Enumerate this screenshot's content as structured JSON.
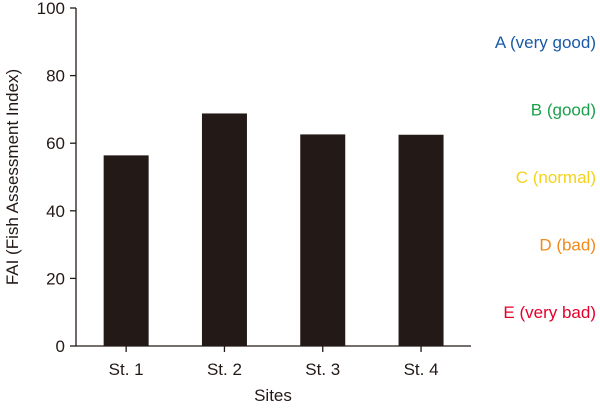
{
  "chart_data": {
    "type": "bar",
    "title": "",
    "xlabel": "Sites",
    "ylabel": "FAI (Fish Assessment Index)",
    "categories": [
      "St. 1",
      "St. 2",
      "St. 3",
      "St. 4"
    ],
    "values": [
      56.4,
      68.8,
      62.6,
      62.5
    ],
    "ylim": [
      0,
      100
    ],
    "yticks": [
      0,
      20,
      40,
      60,
      80,
      100
    ],
    "grid": false,
    "bar_color": "#231916",
    "annotations": [
      {
        "text": "A (very good)",
        "y": 90,
        "color": "#1a5aa8"
      },
      {
        "text": "B (good)",
        "y": 70,
        "color": "#1aa04a"
      },
      {
        "text": "C (normal)",
        "y": 50,
        "color": "#f5d21a"
      },
      {
        "text": "D (bad)",
        "y": 30,
        "color": "#f08a1a"
      },
      {
        "text": "E (very bad)",
        "y": 10,
        "color": "#e4002b"
      }
    ]
  }
}
